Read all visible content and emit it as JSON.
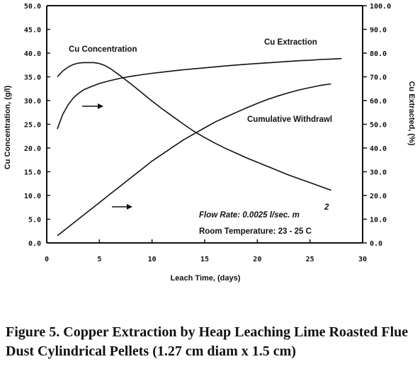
{
  "chart_data": {
    "type": "line",
    "xlabel": "Leach Time, (days)",
    "ylabel_left": "Cu Concentration, (g/l)",
    "ylabel_right": "Cu Extracted, (%)",
    "xlim": [
      0,
      30
    ],
    "ylim_left": [
      0,
      50
    ],
    "ylim_right": [
      0,
      100
    ],
    "x_ticks": [
      "0",
      "5",
      "10",
      "15",
      "20",
      "25",
      "30"
    ],
    "y_left_ticks": [
      "0.0",
      "5.0",
      "10.0",
      "15.0",
      "20.0",
      "25.0",
      "30.0",
      "35.0",
      "40.0",
      "45.0",
      "50.0"
    ],
    "y_right_ticks": [
      "0.0",
      "10.0",
      "20.0",
      "30.0",
      "40.0",
      "50.0",
      "60.0",
      "70.0",
      "80.0",
      "90.0",
      "100.0"
    ],
    "grid": false,
    "series": [
      {
        "name": "Cu Concentration",
        "axis": "left",
        "x": [
          1,
          1.5,
          2,
          2.5,
          3,
          3.5,
          4,
          4.5,
          5,
          5.5,
          6,
          7,
          8,
          9,
          10,
          11,
          12,
          13,
          14,
          15,
          16,
          17,
          18,
          19,
          20,
          21,
          22,
          23,
          24,
          25,
          26,
          27
        ],
        "y": [
          35.0,
          36.2,
          37.0,
          37.6,
          37.9,
          38.0,
          38.0,
          38.0,
          37.8,
          37.4,
          36.8,
          35.2,
          33.5,
          31.7,
          29.9,
          28.2,
          26.6,
          25.0,
          23.5,
          22.2,
          21.0,
          19.9,
          18.9,
          17.9,
          17.0,
          16.1,
          15.2,
          14.3,
          13.5,
          12.7,
          11.9,
          11.1
        ]
      },
      {
        "name": "Cu Extraction",
        "axis": "right",
        "x": [
          1,
          1.5,
          2,
          2.5,
          3,
          3.5,
          4,
          5,
          6,
          7,
          8,
          9,
          10,
          11,
          12,
          13,
          14,
          15,
          16,
          17,
          18,
          19,
          20,
          21,
          22,
          23,
          24,
          25,
          26,
          27,
          28
        ],
        "y": [
          48.0,
          54.0,
          58.0,
          61.0,
          63.0,
          64.5,
          65.5,
          67.2,
          68.4,
          69.4,
          70.2,
          70.9,
          71.5,
          72.0,
          72.5,
          73.0,
          73.4,
          73.8,
          74.2,
          74.6,
          75.0,
          75.3,
          75.6,
          75.9,
          76.2,
          76.5,
          76.8,
          77.0,
          77.3,
          77.5,
          77.7
        ]
      },
      {
        "name": "Cumulative Withdrawl",
        "axis": "right",
        "x": [
          1,
          2,
          3,
          4,
          5,
          6,
          7,
          8,
          9,
          10,
          11,
          12,
          13,
          14,
          15,
          16,
          17,
          18,
          19,
          20,
          21,
          22,
          23,
          24,
          25,
          26,
          27
        ],
        "y": [
          3.0,
          6.5,
          10.0,
          13.5,
          17.0,
          20.5,
          24.0,
          27.5,
          31.0,
          34.5,
          37.5,
          40.5,
          43.5,
          46.0,
          48.5,
          51.0,
          53.0,
          55.0,
          57.0,
          58.8,
          60.5,
          62.0,
          63.3,
          64.5,
          65.5,
          66.4,
          67.0
        ]
      }
    ],
    "annotations": {
      "cu_concentration": "Cu Concentration",
      "cu_extraction": "Cu Extraction",
      "cumulative_withdrawl": "Cumulative Withdrawl",
      "flow_rate": "Flow Rate: 0.0025 l/sec. m",
      "flow_rate_sup": "2",
      "room_temp": "Room Temperature: 23 - 25 C"
    }
  },
  "caption": "Figure 5.  Copper Extraction by Heap Leaching Lime Roasted Flue Dust Cylindrical Pellets (1.27 cm diam x 1.5 cm)"
}
